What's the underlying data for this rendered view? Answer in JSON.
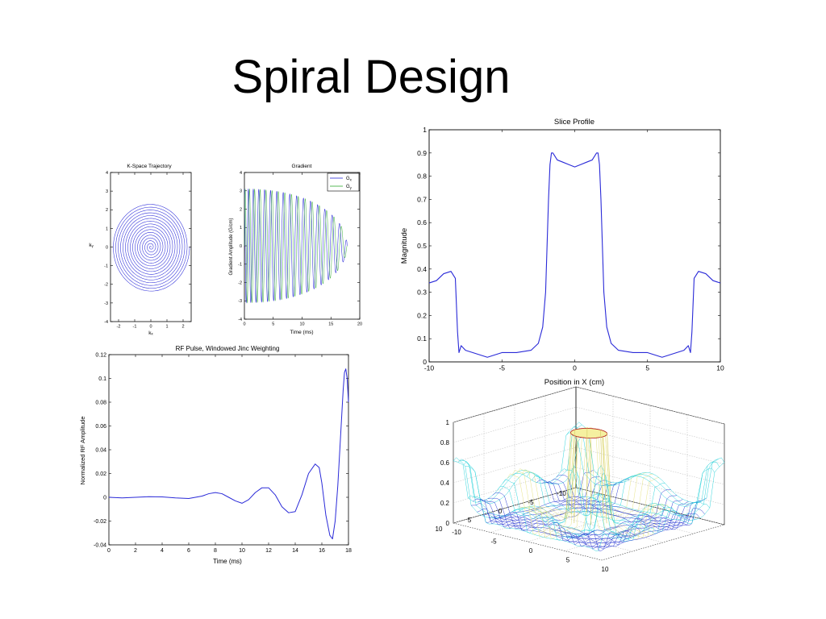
{
  "slide": {
    "title": "Spiral Design"
  },
  "colors": {
    "trace": "#2a2ad8",
    "trace_green": "#2fa82f",
    "mesh_blue": "#1e2ecf",
    "mesh_cyan": "#1fd0d8",
    "mesh_red": "#b01515",
    "grid": "#b8b8b8"
  },
  "chart_data": [
    {
      "type": "line",
      "title": "K-Space Trajectory",
      "xlabel": "kₓ",
      "ylabel": "kᵧ",
      "xlim": [
        -2.5,
        2.5
      ],
      "ylim": [
        -4,
        4
      ],
      "xticks": [
        -2,
        -1,
        0,
        1,
        2
      ],
      "yticks": [
        -4,
        -3,
        -2,
        -1,
        0,
        1,
        2,
        3,
        4
      ],
      "series": [
        {
          "shape": "spiral",
          "turns": 16,
          "max_radius": 2.4
        }
      ]
    },
    {
      "type": "line",
      "title": "Gradient",
      "xlabel": "Time (ms)",
      "ylabel": "Gradient Amplitude (G/cm)",
      "xlim": [
        0,
        20
      ],
      "ylim": [
        -4,
        4
      ],
      "xticks": [
        0,
        5,
        10,
        15,
        20
      ],
      "yticks": [
        -4,
        -3,
        -2,
        -1,
        0,
        1,
        2,
        3,
        4
      ],
      "legend": "top-right",
      "series": [
        {
          "name": "Gx",
          "label": "G",
          "sub": "x",
          "start_amplitude": 3.1,
          "end_time": 17.8,
          "cycles": 16
        },
        {
          "name": "Gy",
          "label": "G",
          "sub": "y",
          "start_amplitude": 3.1,
          "end_time": 17.8,
          "cycles": 16
        }
      ]
    },
    {
      "type": "line",
      "title": "Slice Profile",
      "xlabel": "Position in X (cm)",
      "ylabel": "Magnitude",
      "xlim": [
        -10,
        10
      ],
      "ylim": [
        0,
        1
      ],
      "xticks": [
        -10,
        -5,
        0,
        5,
        10
      ],
      "yticks": [
        0,
        0.1,
        0.2,
        0.3,
        0.4,
        0.5,
        0.6,
        0.7,
        0.8,
        0.9,
        1
      ],
      "series": [
        {
          "x": [
            -10,
            -9.5,
            -9,
            -8.5,
            -8.2,
            -8.05,
            -7.95,
            -7.8,
            -7.5,
            -7,
            -6.5,
            -6,
            -5.5,
            -5,
            -4,
            -3,
            -2.5,
            -2.2,
            -2,
            -1.9,
            -1.8,
            -1.7,
            -1.6,
            -1.5,
            -1.2,
            -0.8,
            -0.4,
            0,
            0.4,
            0.8,
            1.2,
            1.5,
            1.6,
            1.7,
            1.8,
            1.9,
            2,
            2.2,
            2.5,
            3,
            4,
            5,
            5.5,
            6,
            6.5,
            7,
            7.5,
            7.8,
            7.95,
            8.05,
            8.2,
            8.5,
            9,
            9.5,
            10
          ],
          "y": [
            0.34,
            0.35,
            0.38,
            0.39,
            0.36,
            0.13,
            0.04,
            0.07,
            0.05,
            0.04,
            0.03,
            0.02,
            0.03,
            0.04,
            0.04,
            0.05,
            0.08,
            0.15,
            0.3,
            0.5,
            0.7,
            0.85,
            0.9,
            0.9,
            0.87,
            0.86,
            0.85,
            0.84,
            0.85,
            0.86,
            0.87,
            0.9,
            0.9,
            0.85,
            0.7,
            0.5,
            0.3,
            0.15,
            0.08,
            0.05,
            0.04,
            0.04,
            0.03,
            0.02,
            0.03,
            0.04,
            0.05,
            0.07,
            0.04,
            0.13,
            0.36,
            0.39,
            0.38,
            0.35,
            0.34
          ]
        }
      ]
    },
    {
      "type": "line",
      "title": "RF Pulse, Windowed Jinc Weighting",
      "xlabel": "Time (ms)",
      "ylabel": "Normalized RF Amplitude",
      "xlim": [
        0,
        18
      ],
      "ylim": [
        -0.04,
        0.12
      ],
      "xticks": [
        0,
        2,
        4,
        6,
        8,
        10,
        12,
        14,
        16,
        18
      ],
      "yticks": [
        -0.04,
        -0.02,
        0,
        0.02,
        0.04,
        0.06,
        0.08,
        0.1,
        0.12
      ],
      "series": [
        {
          "x": [
            0,
            1,
            2,
            3,
            4,
            5,
            6,
            6.5,
            7,
            7.5,
            8,
            8.5,
            9,
            9.5,
            10,
            10.5,
            11,
            11.5,
            12,
            12.5,
            13,
            13.5,
            14,
            14.5,
            15,
            15.5,
            15.8,
            16,
            16.3,
            16.6,
            16.8,
            17,
            17.2,
            17.4,
            17.6,
            17.7,
            17.8,
            17.9,
            18
          ],
          "y": [
            0,
            -0.0005,
            0,
            0.0005,
            0.0003,
            -0.0005,
            -0.001,
            0,
            0.001,
            0.003,
            0.004,
            0.003,
            0,
            -0.003,
            -0.005,
            -0.002,
            0.004,
            0.008,
            0.008,
            0.002,
            -0.008,
            -0.013,
            -0.012,
            0.002,
            0.02,
            0.028,
            0.025,
            0.012,
            -0.015,
            -0.032,
            -0.035,
            -0.02,
            0.01,
            0.05,
            0.09,
            0.105,
            0.108,
            0.1,
            0.08
          ]
        }
      ]
    },
    {
      "type": "surface",
      "title": "",
      "zlim": [
        0,
        1
      ],
      "zticks": [
        0,
        0.2,
        0.4,
        0.6,
        0.8,
        1
      ],
      "xticks": [
        10,
        5,
        0,
        -5,
        -10
      ],
      "yticks": [
        -10,
        -5,
        0,
        5,
        10
      ],
      "series": [
        {
          "shape": "slice-profile-2d",
          "peak": 0.9,
          "plateau": 0.35
        }
      ]
    }
  ]
}
